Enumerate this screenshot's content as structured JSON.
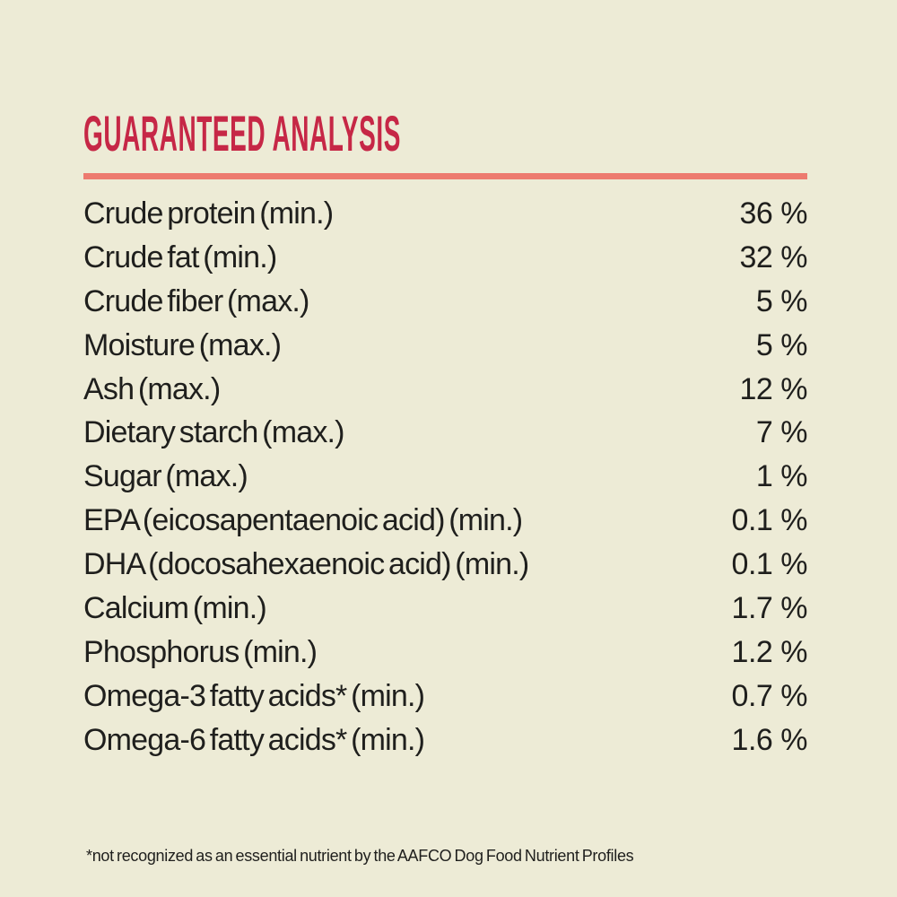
{
  "theme": {
    "background": "#edebd6",
    "heading_color": "#c62746",
    "divider_color": "#ed7a6f",
    "text_color": "#1f1f1d"
  },
  "header": {
    "title": "GUARANTEED ANALYSIS"
  },
  "analysis": {
    "rows": [
      {
        "label": "Crude protein (min.)",
        "value": "36 %"
      },
      {
        "label": "Crude fat (min.)",
        "value": "32 %"
      },
      {
        "label": "Crude fiber (max.)",
        "value": "5 %"
      },
      {
        "label": "Moisture (max.)",
        "value": "5 %"
      },
      {
        "label": "Ash (max.)",
        "value": "12 %"
      },
      {
        "label": "Dietary starch (max.)",
        "value": "7 %"
      },
      {
        "label": "Sugar (max.)",
        "value": "1 %"
      },
      {
        "label": "EPA (eicosapentaenoic acid) (min.)",
        "value": "0.1 %"
      },
      {
        "label": "DHA (docosahexaenoic acid) (min.)",
        "value": "0.1 %"
      },
      {
        "label": "Calcium (min.)",
        "value": "1.7 %"
      },
      {
        "label": "Phosphorus (min.)",
        "value": "1.2 %"
      },
      {
        "label": "Omega-3 fatty acids* (min.)",
        "value": "0.7 %"
      },
      {
        "label": "Omega-6 fatty acids* (min.)",
        "value": "1.6 %"
      }
    ]
  },
  "footnote": "*not recognized as an essential nutrient by the AAFCO Dog Food Nutrient Profiles"
}
